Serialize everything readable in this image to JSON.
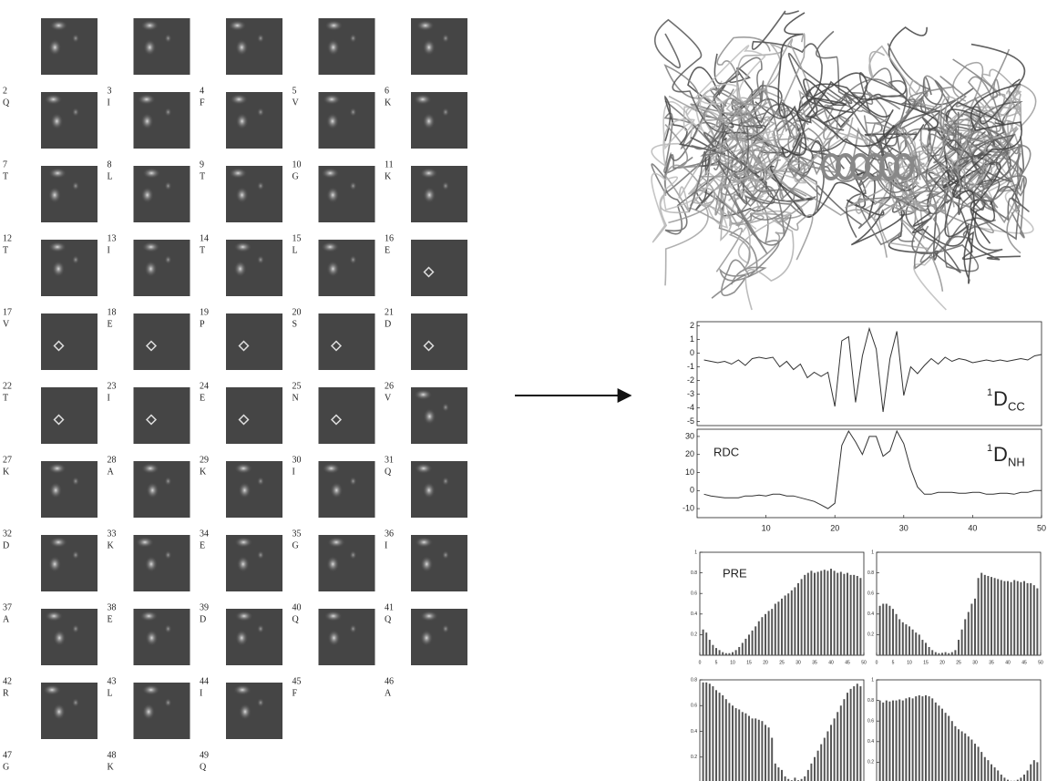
{
  "residues": [
    {
      "number": 2,
      "letter": "Q"
    },
    {
      "number": 3,
      "letter": "I"
    },
    {
      "number": 4,
      "letter": "F"
    },
    {
      "number": 5,
      "letter": "V"
    },
    {
      "number": 6,
      "letter": "K"
    },
    {
      "number": 7,
      "letter": "T"
    },
    {
      "number": 8,
      "letter": "L"
    },
    {
      "number": 9,
      "letter": "T"
    },
    {
      "number": 10,
      "letter": "G"
    },
    {
      "number": 11,
      "letter": "K"
    },
    {
      "number": 12,
      "letter": "T"
    },
    {
      "number": 13,
      "letter": "I"
    },
    {
      "number": 14,
      "letter": "T"
    },
    {
      "number": 15,
      "letter": "L"
    },
    {
      "number": 16,
      "letter": "E"
    },
    {
      "number": 17,
      "letter": "V"
    },
    {
      "number": 18,
      "letter": "E"
    },
    {
      "number": 19,
      "letter": "P"
    },
    {
      "number": 20,
      "letter": "S"
    },
    {
      "number": 21,
      "letter": "D"
    },
    {
      "number": 22,
      "letter": "T"
    },
    {
      "number": 23,
      "letter": "I"
    },
    {
      "number": 24,
      "letter": "E"
    },
    {
      "number": 25,
      "letter": "N"
    },
    {
      "number": 26,
      "letter": "V"
    },
    {
      "number": 27,
      "letter": "K"
    },
    {
      "number": 28,
      "letter": "A"
    },
    {
      "number": 29,
      "letter": "K"
    },
    {
      "number": 30,
      "letter": "I"
    },
    {
      "number": 31,
      "letter": "Q"
    },
    {
      "number": 32,
      "letter": "D"
    },
    {
      "number": 33,
      "letter": "K"
    },
    {
      "number": 34,
      "letter": "E"
    },
    {
      "number": 35,
      "letter": "G"
    },
    {
      "number": 36,
      "letter": "I"
    },
    {
      "number": 37,
      "letter": "A"
    },
    {
      "number": 38,
      "letter": "E"
    },
    {
      "number": 39,
      "letter": "D"
    },
    {
      "number": 40,
      "letter": "Q"
    },
    {
      "number": 41,
      "letter": "Q"
    },
    {
      "number": 42,
      "letter": "R"
    },
    {
      "number": 43,
      "letter": "L"
    },
    {
      "number": 44,
      "letter": "I"
    },
    {
      "number": 45,
      "letter": "F"
    },
    {
      "number": 46,
      "letter": "A"
    },
    {
      "number": 47,
      "letter": "G"
    },
    {
      "number": 48,
      "letter": "K"
    },
    {
      "number": 49,
      "letter": "Q"
    }
  ],
  "chart_data": [
    {
      "type": "line",
      "color": "#333333",
      "label": {
        "sup": "1",
        "main": "D",
        "sub": "CC"
      },
      "x": [
        1,
        2,
        3,
        4,
        5,
        6,
        7,
        8,
        9,
        10,
        11,
        12,
        13,
        14,
        15,
        16,
        17,
        18,
        19,
        20,
        21,
        22,
        23,
        24,
        25,
        26,
        27,
        28,
        29,
        30,
        31,
        32,
        33,
        34,
        35,
        36,
        37,
        38,
        39,
        40,
        41,
        42,
        43,
        44,
        45,
        46,
        47,
        48,
        49,
        50
      ],
      "values": [
        -0.5,
        -0.6,
        -0.7,
        -0.6,
        -0.8,
        -0.5,
        -0.9,
        -0.4,
        -0.3,
        -0.4,
        -0.3,
        -1.0,
        -0.6,
        -1.2,
        -0.8,
        -1.8,
        -1.4,
        -1.7,
        -1.4,
        -3.9,
        0.9,
        1.2,
        -3.6,
        -0.2,
        1.8,
        0.3,
        -4.3,
        -0.4,
        1.6,
        -3.1,
        -1.0,
        -1.5,
        -0.9,
        -0.4,
        -0.8,
        -0.3,
        -0.6,
        -0.4,
        -0.5,
        -0.7,
        -0.6,
        -0.5,
        -0.6,
        -0.5,
        -0.6,
        -0.5,
        -0.4,
        -0.5,
        -0.2,
        -0.1
      ],
      "xlim": [
        0,
        50
      ],
      "ylim": [
        -5.3,
        2.3
      ],
      "yticks": [
        2,
        1,
        0,
        -1,
        -2,
        -3,
        -4,
        -5
      ]
    },
    {
      "type": "line",
      "color": "#333333",
      "annotations": [
        "RDC"
      ],
      "label": {
        "sup": "1",
        "main": "D",
        "sub": "NH"
      },
      "x": [
        1,
        2,
        3,
        4,
        5,
        6,
        7,
        8,
        9,
        10,
        11,
        12,
        13,
        14,
        15,
        16,
        17,
        18,
        19,
        20,
        21,
        22,
        23,
        24,
        25,
        26,
        27,
        28,
        29,
        30,
        31,
        32,
        33,
        34,
        35,
        36,
        37,
        38,
        39,
        40,
        41,
        42,
        43,
        44,
        45,
        46,
        47,
        48,
        49,
        50
      ],
      "values": [
        -2,
        -3,
        -3.5,
        -4,
        -4,
        -4,
        -3,
        -3,
        -2.5,
        -3,
        -2,
        -2,
        -3,
        -3,
        -4,
        -5,
        -6,
        -8,
        -10,
        -7,
        25,
        33,
        27,
        20,
        30,
        30,
        19,
        22,
        33,
        26,
        12,
        2,
        -2,
        -2,
        -1,
        -1,
        -1,
        -1.5,
        -1.5,
        -1,
        -1,
        -2,
        -2,
        -1.5,
        -1.5,
        -2,
        -1,
        -1,
        0,
        0
      ],
      "xlim": [
        0,
        50
      ],
      "ylim": [
        -15,
        34
      ],
      "yticks": [
        30,
        20,
        10,
        0,
        -10
      ],
      "xticks": [
        10,
        20,
        30,
        40,
        50
      ]
    },
    {
      "type": "bar",
      "color": "#555555",
      "title": "PRE",
      "x": [
        1,
        2,
        3,
        4,
        5,
        6,
        7,
        8,
        9,
        10,
        11,
        12,
        13,
        14,
        15,
        16,
        17,
        18,
        19,
        20,
        21,
        22,
        23,
        24,
        25,
        26,
        27,
        28,
        29,
        30,
        31,
        32,
        33,
        34,
        35,
        36,
        37,
        38,
        39,
        40,
        41,
        42,
        43,
        44,
        45,
        46,
        47,
        48,
        49
      ],
      "values": [
        0.25,
        0.22,
        0.15,
        0.1,
        0.07,
        0.05,
        0.03,
        0.02,
        0.02,
        0.03,
        0.05,
        0.08,
        0.12,
        0.16,
        0.2,
        0.24,
        0.28,
        0.33,
        0.37,
        0.4,
        0.43,
        0.45,
        0.5,
        0.52,
        0.55,
        0.58,
        0.6,
        0.63,
        0.66,
        0.7,
        0.74,
        0.78,
        0.8,
        0.82,
        0.8,
        0.81,
        0.82,
        0.83,
        0.82,
        0.84,
        0.82,
        0.8,
        0.81,
        0.79,
        0.8,
        0.78,
        0.78,
        0.77,
        0.75
      ],
      "xlim": [
        0,
        50
      ],
      "ylim": [
        0,
        1
      ],
      "yticks": [
        1,
        0.8,
        0.6,
        0.4,
        0.2
      ],
      "xticks": [
        0,
        5,
        10,
        15,
        20,
        25,
        30,
        35,
        40,
        45,
        50
      ]
    },
    {
      "type": "bar",
      "color": "#555555",
      "x": [
        1,
        2,
        3,
        4,
        5,
        6,
        7,
        8,
        9,
        10,
        11,
        12,
        13,
        14,
        15,
        16,
        17,
        18,
        19,
        20,
        21,
        22,
        23,
        24,
        25,
        26,
        27,
        28,
        29,
        30,
        31,
        32,
        33,
        34,
        35,
        36,
        37,
        38,
        39,
        40,
        41,
        42,
        43,
        44,
        45,
        46,
        47,
        48,
        49
      ],
      "values": [
        0.48,
        0.5,
        0.5,
        0.48,
        0.45,
        0.4,
        0.35,
        0.32,
        0.3,
        0.28,
        0.25,
        0.22,
        0.2,
        0.15,
        0.12,
        0.08,
        0.05,
        0.03,
        0.02,
        0.02,
        0.03,
        0.02,
        0.03,
        0.05,
        0.15,
        0.25,
        0.35,
        0.42,
        0.5,
        0.55,
        0.75,
        0.8,
        0.78,
        0.77,
        0.76,
        0.75,
        0.74,
        0.73,
        0.72,
        0.72,
        0.71,
        0.73,
        0.72,
        0.71,
        0.72,
        0.7,
        0.7,
        0.68,
        0.65
      ],
      "xlim": [
        0,
        50
      ],
      "ylim": [
        0,
        1
      ],
      "yticks": [
        1,
        0.8,
        0.6,
        0.4,
        0.2
      ],
      "xticks": [
        0,
        5,
        10,
        15,
        20,
        25,
        30,
        35,
        40,
        45,
        50
      ]
    },
    {
      "type": "bar",
      "color": "#555555",
      "x": [
        1,
        2,
        3,
        4,
        5,
        6,
        7,
        8,
        9,
        10,
        11,
        12,
        13,
        14,
        15,
        16,
        17,
        18,
        19,
        20,
        21,
        22,
        23,
        24,
        25,
        26,
        27,
        28,
        29,
        30,
        31,
        32,
        33,
        34,
        35,
        36,
        37,
        38,
        39,
        40,
        41,
        42,
        43,
        44,
        45,
        46,
        47,
        48,
        49
      ],
      "values": [
        0.78,
        0.78,
        0.77,
        0.75,
        0.72,
        0.7,
        0.68,
        0.65,
        0.62,
        0.6,
        0.58,
        0.57,
        0.55,
        0.54,
        0.52,
        0.5,
        0.5,
        0.49,
        0.48,
        0.45,
        0.43,
        0.35,
        0.15,
        0.12,
        0.1,
        0.05,
        0.03,
        0.02,
        0.04,
        0.02,
        0.03,
        0.05,
        0.1,
        0.15,
        0.2,
        0.25,
        0.3,
        0.35,
        0.4,
        0.45,
        0.5,
        0.55,
        0.6,
        0.65,
        0.7,
        0.73,
        0.75,
        0.77,
        0.75
      ],
      "xlim": [
        0,
        50
      ],
      "ylim": [
        0,
        0.8
      ],
      "yticks": [
        0.8,
        0.6,
        0.4,
        0.2
      ]
    },
    {
      "type": "bar",
      "color": "#555555",
      "x": [
        1,
        2,
        3,
        4,
        5,
        6,
        7,
        8,
        9,
        10,
        11,
        12,
        13,
        14,
        15,
        16,
        17,
        18,
        19,
        20,
        21,
        22,
        23,
        24,
        25,
        26,
        27,
        28,
        29,
        30,
        31,
        32,
        33,
        34,
        35,
        36,
        37,
        38,
        39,
        40,
        41,
        42,
        43,
        44,
        45,
        46,
        47,
        48,
        49
      ],
      "values": [
        0.8,
        0.78,
        0.8,
        0.79,
        0.8,
        0.8,
        0.81,
        0.8,
        0.82,
        0.83,
        0.82,
        0.84,
        0.85,
        0.84,
        0.85,
        0.84,
        0.82,
        0.78,
        0.75,
        0.72,
        0.68,
        0.65,
        0.6,
        0.55,
        0.52,
        0.5,
        0.48,
        0.45,
        0.42,
        0.38,
        0.35,
        0.3,
        0.25,
        0.22,
        0.18,
        0.15,
        0.12,
        0.08,
        0.05,
        0.03,
        0.02,
        0.02,
        0.03,
        0.05,
        0.08,
        0.12,
        0.18,
        0.22,
        0.2
      ],
      "xlim": [
        0,
        50
      ],
      "ylim": [
        0,
        1
      ],
      "yticks": [
        1,
        0.8,
        0.6,
        0.4,
        0.2
      ]
    }
  ]
}
